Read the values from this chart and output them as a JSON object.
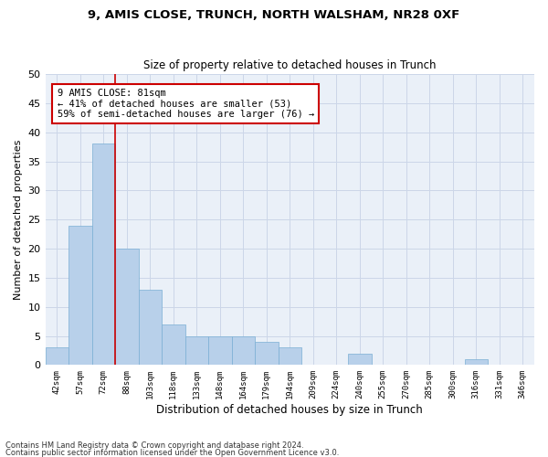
{
  "title1": "9, AMIS CLOSE, TRUNCH, NORTH WALSHAM, NR28 0XF",
  "title2": "Size of property relative to detached houses in Trunch",
  "xlabel": "Distribution of detached houses by size in Trunch",
  "ylabel": "Number of detached properties",
  "categories": [
    "42sqm",
    "57sqm",
    "72sqm",
    "88sqm",
    "103sqm",
    "118sqm",
    "133sqm",
    "148sqm",
    "164sqm",
    "179sqm",
    "194sqm",
    "209sqm",
    "224sqm",
    "240sqm",
    "255sqm",
    "270sqm",
    "285sqm",
    "300sqm",
    "316sqm",
    "331sqm",
    "346sqm"
  ],
  "values": [
    3,
    24,
    38,
    20,
    13,
    7,
    5,
    5,
    5,
    4,
    3,
    0,
    0,
    2,
    0,
    0,
    0,
    0,
    1,
    0,
    0
  ],
  "bar_color": "#b8d0ea",
  "bar_edge_color": "#7aafd4",
  "grid_color": "#ccd6e8",
  "background_color": "#eaf0f8",
  "red_line_x": 2.5,
  "annotation_text": "9 AMIS CLOSE: 81sqm\n← 41% of detached houses are smaller (53)\n59% of semi-detached houses are larger (76) →",
  "annotation_box_color": "#ffffff",
  "annotation_border_color": "#cc0000",
  "ylim": [
    0,
    50
  ],
  "yticks": [
    0,
    5,
    10,
    15,
    20,
    25,
    30,
    35,
    40,
    45,
    50
  ],
  "footnote1": "Contains HM Land Registry data © Crown copyright and database right 2024.",
  "footnote2": "Contains public sector information licensed under the Open Government Licence v3.0."
}
